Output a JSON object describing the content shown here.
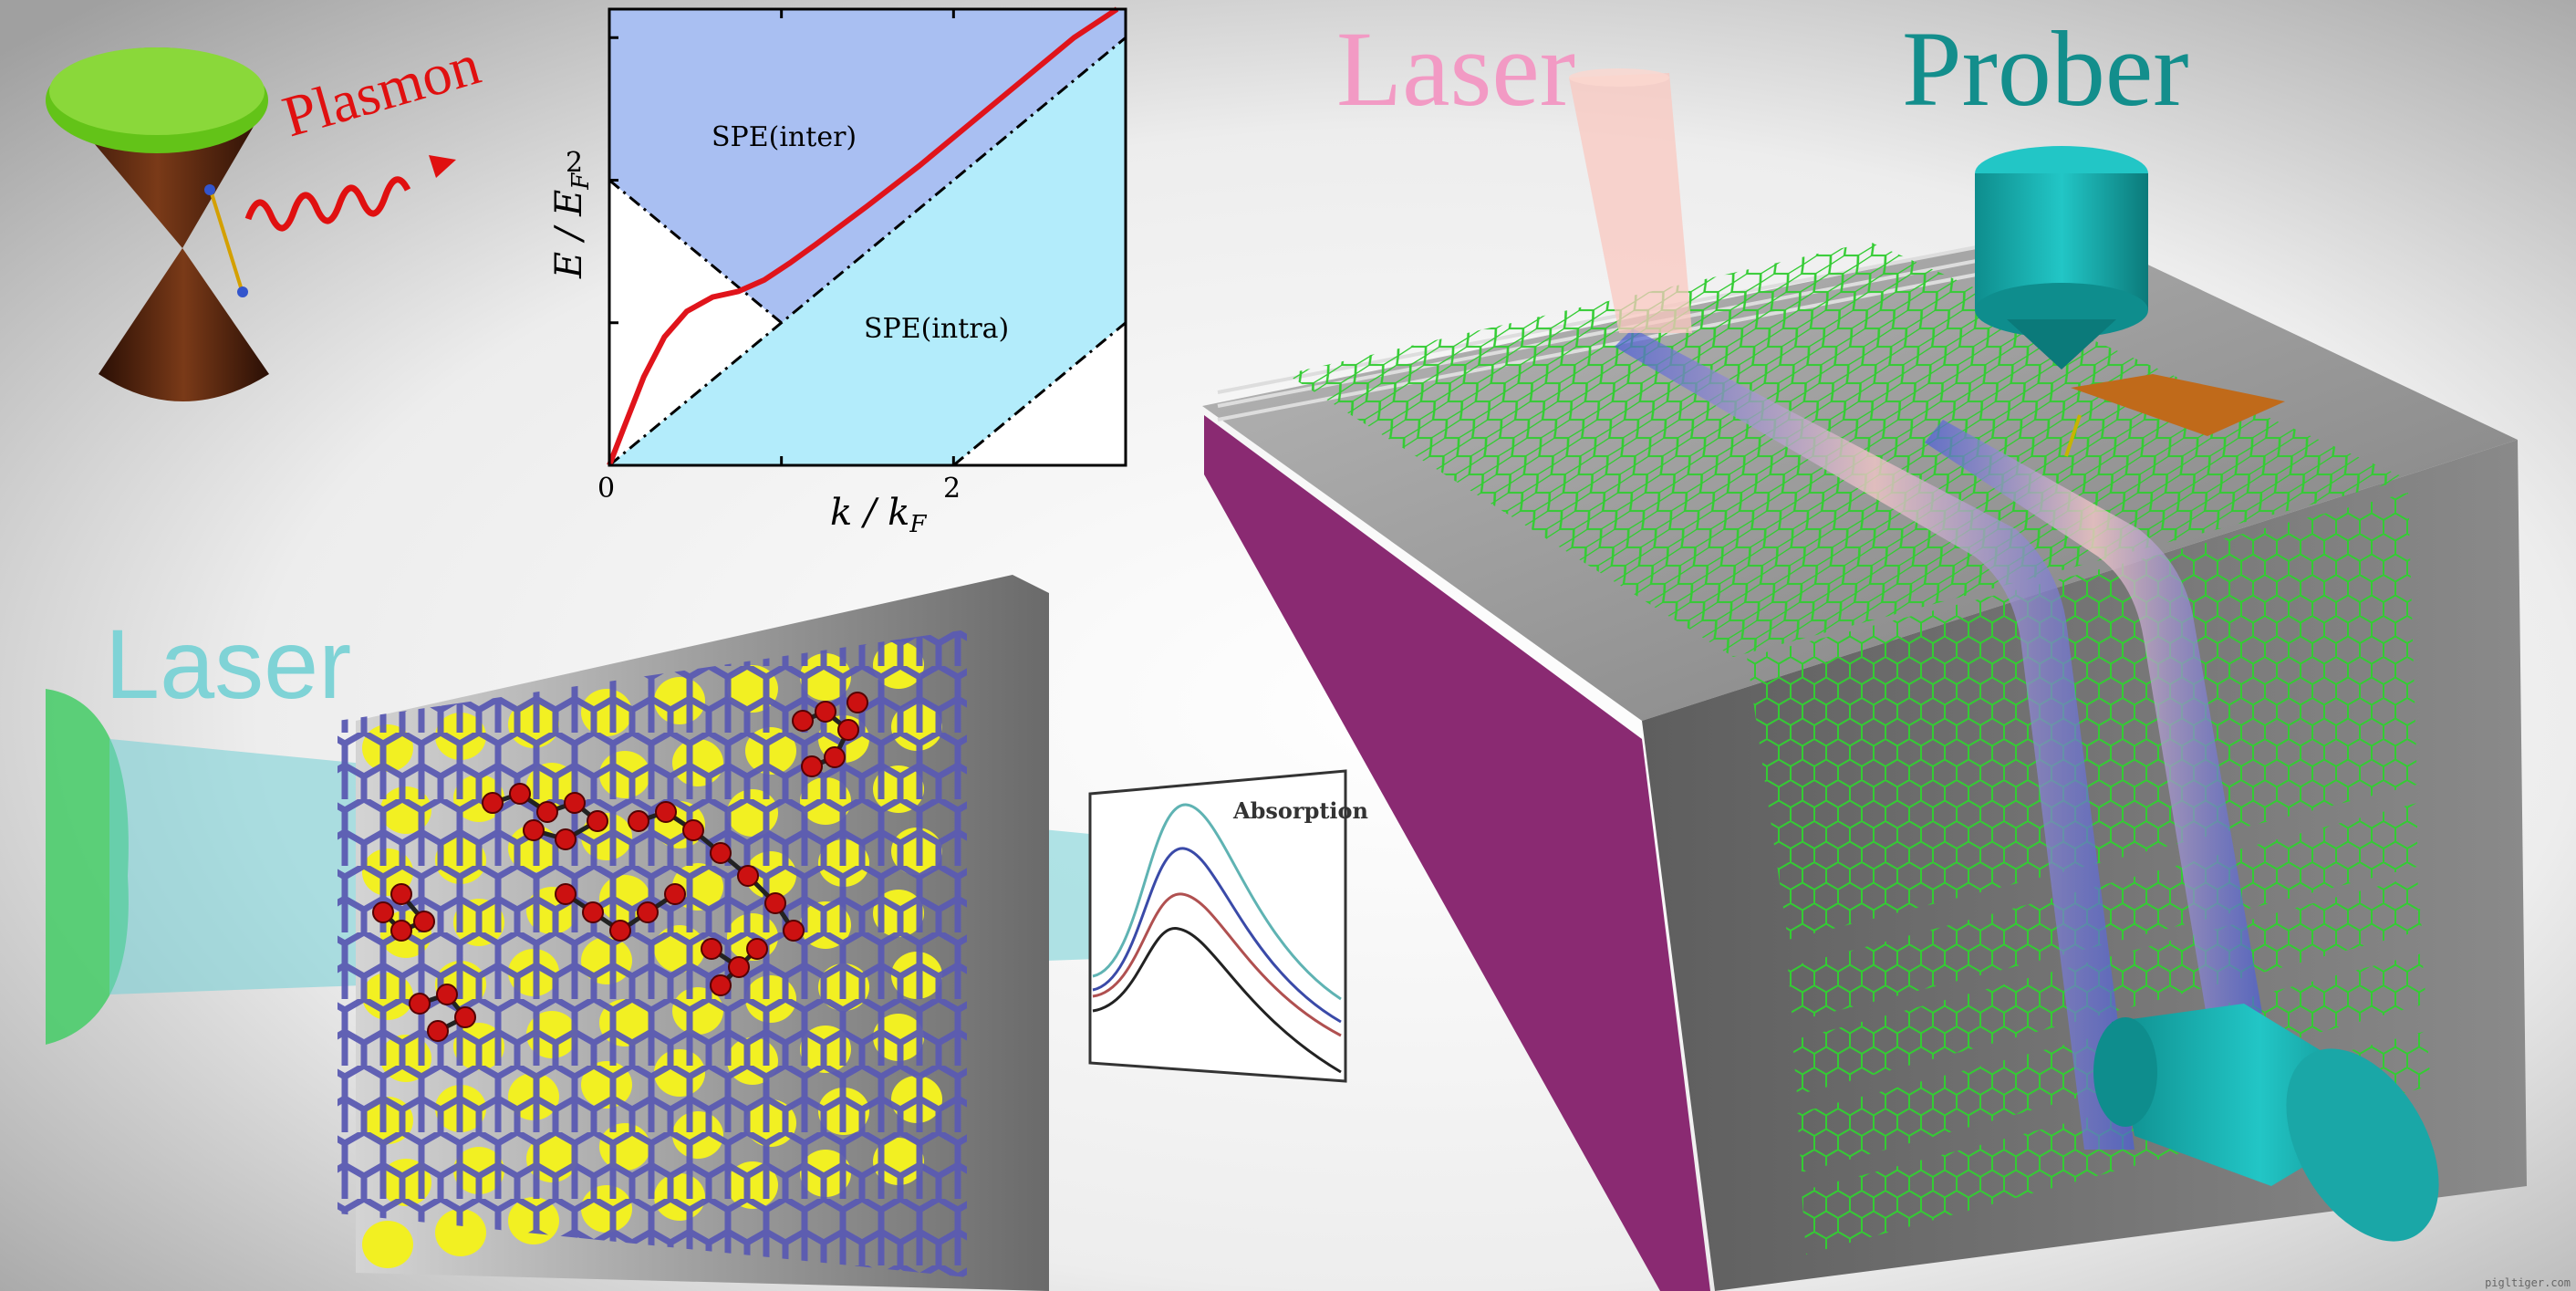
{
  "labels": {
    "plasmon": "Plasmon",
    "laser_top": "Laser",
    "prober": "Prober",
    "laser_left": "Laser",
    "absorption": "Absorption",
    "watermark": "pigltiger.com"
  },
  "inset_plot": {
    "ylabel_main": "E / E",
    "ylabel_sub": "F",
    "xlabel_main": "k / k",
    "xlabel_sub": "F",
    "x_ticks": [
      "0",
      "2"
    ],
    "y_ticks": [
      "2"
    ],
    "region_inter": "SPE(inter)",
    "region_intra": "SPE(intra)",
    "xlim": [
      0,
      3
    ],
    "ylim": [
      0,
      3.2
    ],
    "plasmon_curve": [
      [
        0,
        0
      ],
      [
        0.08,
        0.25
      ],
      [
        0.2,
        0.62
      ],
      [
        0.32,
        0.9
      ],
      [
        0.45,
        1.08
      ],
      [
        0.6,
        1.18
      ],
      [
        0.75,
        1.22
      ],
      [
        0.9,
        1.3
      ],
      [
        1.05,
        1.42
      ],
      [
        1.2,
        1.55
      ],
      [
        1.5,
        1.82
      ],
      [
        1.8,
        2.1
      ],
      [
        2.1,
        2.4
      ],
      [
        2.4,
        2.7
      ],
      [
        2.7,
        3.0
      ],
      [
        2.95,
        3.2
      ]
    ]
  },
  "colors": {
    "inter_region": "#a9bff2",
    "intra_region": "#b3ecfb",
    "plasmon_line": "#e0141b",
    "upper_cone": "#63c318",
    "lower_cone": "#5a2a12",
    "graphene_green": "#33cc33",
    "graphene_blue": "#5a5ab2",
    "molecule_red": "#cc1111",
    "prober_teal": "#1aa7a7",
    "substrate_purple": "#8a2a72",
    "block_gray": "#7c7c7c",
    "electrode_orange": "#c06a1a",
    "laser_beam_pink": "#f9c8c0",
    "laser_beam_cyan": "#73cfd6",
    "laser_source_green": "#44cc66",
    "absorption_curves": [
      "#5fb3b3",
      "#3a4aa8",
      "#b05050",
      "#222222"
    ]
  }
}
